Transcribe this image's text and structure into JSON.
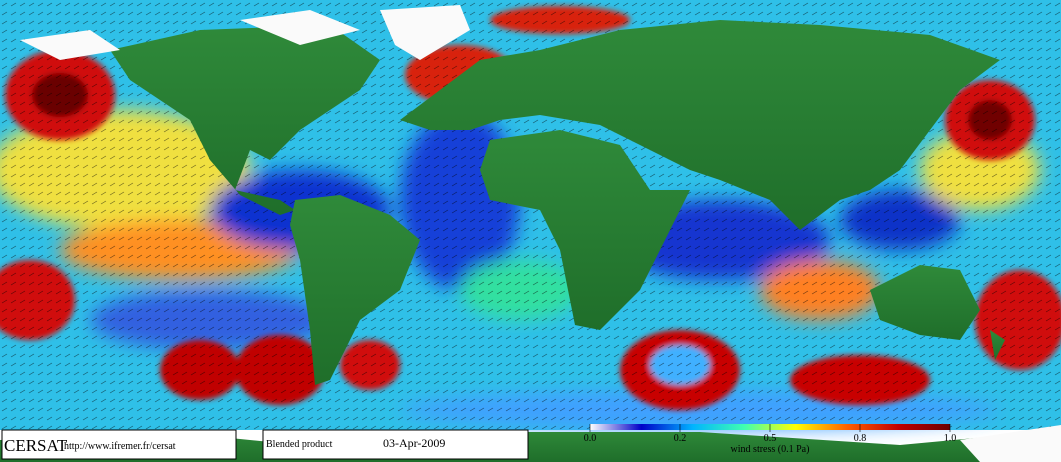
{
  "footer": {
    "brand": "CERSAT",
    "url": "http://www.ifremer.fr/cersat",
    "product": "Blended product",
    "date": "03-Apr-2009"
  },
  "colorbar": {
    "label": "wind stress (0.1 Pa)",
    "ticks": [
      {
        "value": 0,
        "label": "0.0"
      },
      0.2,
      0.5,
      0.8,
      {
        "value": 1,
        "label": "1.0"
      }
    ],
    "colors": [
      "#ffffff",
      "#0000c8",
      "#00b4ff",
      "#40ffb0",
      "#ffff00",
      "#ff6000",
      "#c00000",
      "#6a0000"
    ]
  }
}
